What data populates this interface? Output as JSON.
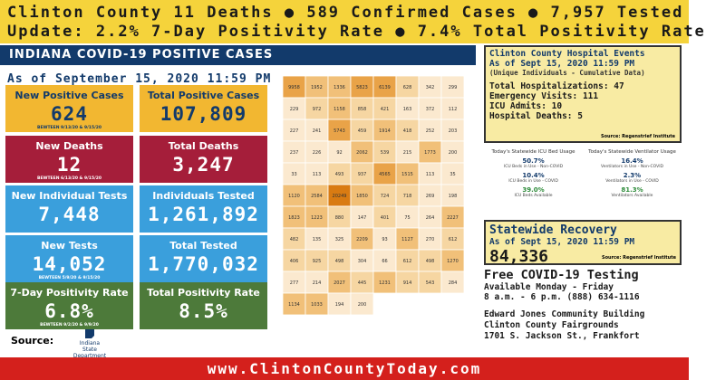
{
  "header": {
    "line1": "Clinton County 11 Deaths ● 589 Confirmed Cases  ● 7,957 Tested",
    "line2": "Update:      2.2% 7-Day Positivity Rate ● 7.4% Total Positivity Rate"
  },
  "section_title": "INDIANA COVID-19 POSITIVE CASES",
  "as_of": "As of September 15, 2020 11:59 PM",
  "colors": {
    "yellow": "#f5d33b",
    "navy": "#123a6b",
    "red_tile": "#a51e3a",
    "blue_tile": "#3a9fdc",
    "green_tile": "#4d7a3a",
    "footer_red": "#d4201c"
  },
  "tiles_left": [
    {
      "title": "New Positive Cases",
      "value": "624",
      "sub": "BEWTEEN 9/13/20 & 9/15/20",
      "color": "#f2b731",
      "fg": "#123a6b"
    },
    {
      "title": "New Deaths",
      "value": "12",
      "sub": "BEWTEEN 6/13/20 & 9/15/20",
      "color": "#a51e3a",
      "fg": "#ffffff"
    },
    {
      "title": "New Individual Tests",
      "value": "7,448",
      "sub": "",
      "color": "#3a9fdc",
      "fg": "#ffffff"
    },
    {
      "title": "New Tests",
      "value": "14,052",
      "sub": "BEWTEEN 5/9/20 & 9/15/20",
      "color": "#3a9fdc",
      "fg": "#ffffff"
    },
    {
      "title": "7-Day Positivity Rate",
      "value": "6.8%",
      "sub": "BEWTEEN 9/2/20 & 9/9/20",
      "color": "#4d7a3a",
      "fg": "#ffffff"
    }
  ],
  "tiles_right": [
    {
      "title": "Total Positive Cases",
      "value": "107,809",
      "color": "#f2b731",
      "fg": "#123a6b"
    },
    {
      "title": "Total Deaths",
      "value": "3,247",
      "color": "#a51e3a",
      "fg": "#ffffff"
    },
    {
      "title": "Individuals Tested",
      "value": "1,261,892",
      "color": "#3a9fdc",
      "fg": "#ffffff"
    },
    {
      "title": "Total Tested",
      "value": "1,770,032",
      "color": "#3a9fdc",
      "fg": "#ffffff"
    },
    {
      "title": "Total Positivity Rate",
      "value": "8.5%",
      "color": "#4d7a3a",
      "fg": "#ffffff"
    }
  ],
  "map_counts": [
    "9958",
    "1952",
    "1336",
    "5823",
    "6139",
    "628",
    "342",
    "299",
    "229",
    "972",
    "1158",
    "858",
    "421",
    "163",
    "372",
    "112",
    "227",
    "241",
    "5743",
    "459",
    "1914",
    "418",
    "252",
    "203",
    "237",
    "226",
    "92",
    "2062",
    "539",
    "215",
    "1773",
    "200",
    "33",
    "113",
    "493",
    "937",
    "4565",
    "1515",
    "113",
    "35",
    "1120",
    "2584",
    "20249",
    "1850",
    "724",
    "718",
    "269",
    "198",
    "1823",
    "1223",
    "880",
    "147",
    "401",
    "75",
    "264",
    "2227",
    "482",
    "135",
    "325",
    "2209",
    "93",
    "1127",
    "270",
    "612",
    "406",
    "925",
    "498",
    "304",
    "66",
    "612",
    "498",
    "1270",
    "277",
    "214",
    "2027",
    "445",
    "1231",
    "914",
    "543",
    "284",
    "1134",
    "1033",
    "194",
    "200"
  ],
  "source_label": "Source:",
  "source_logo": "Indiana State Department of Health",
  "hospital": {
    "title": "Clinton County Hospital Events",
    "asof": "As of Sept 15, 2020 11:59 PM",
    "note": "(Unique Individuals - Cumulative Data)",
    "rows": [
      "Total Hospitalizations: 47",
      "Emergency Visits: 111",
      "ICU Admits: 10",
      "Hospital Deaths: 5"
    ],
    "source": "Source: Regenstrief Institute"
  },
  "beds": {
    "icu_title": "Today's Statewide ICU Bed Usage",
    "vent_title": "Today's Statewide Ventilator Usage",
    "icu": [
      {
        "pct": "50.7%",
        "label": "ICU Beds in Use - Non-COVID",
        "color": "#123a6b"
      },
      {
        "pct": "10.4%",
        "label": "ICU Beds in Use - COVID",
        "color": "#123a6b"
      },
      {
        "pct": "39.0%",
        "label": "ICU Beds Available",
        "color": "#2e8b3a"
      }
    ],
    "vent": [
      {
        "pct": "16.4%",
        "label": "Ventilators in Use - Non-COVID",
        "color": "#123a6b"
      },
      {
        "pct": "2.3%",
        "label": "Ventilators in Use - COVID",
        "color": "#123a6b"
      },
      {
        "pct": "81.3%",
        "label": "Ventilators Available",
        "color": "#2e8b3a"
      }
    ]
  },
  "recovery": {
    "title": "Statewide Recovery",
    "asof": "As of Sept 15, 2020 11:59 PM",
    "value": "84,336",
    "source": "Source: Regenstrief Institute"
  },
  "testing": {
    "title": "Free COVID-19 Testing",
    "days": "Available Monday - Friday",
    "hours": "8 a.m. - 6 p.m.    (888) 634-1116",
    "location": [
      "Edward Jones Community Building",
      "Clinton County Fairgrounds",
      "1701 S. Jackson St., Frankfort"
    ]
  },
  "footer": "www.ClintonCountyToday.com"
}
